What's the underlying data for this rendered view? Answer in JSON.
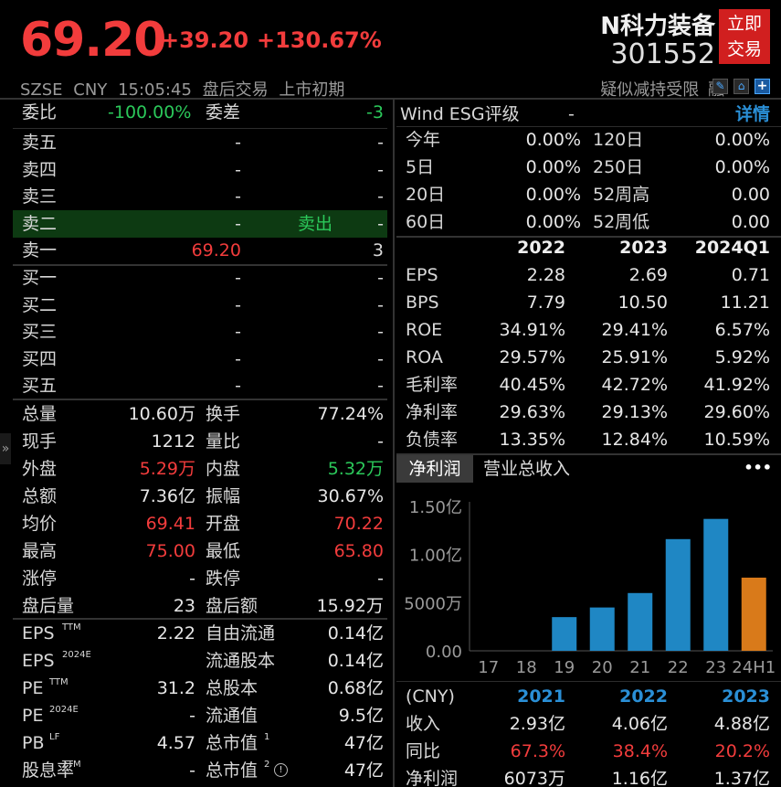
{
  "header": {
    "price": "69.20",
    "change": "+39.20",
    "change_pct": "+130.67%",
    "name": "N科力装备",
    "code": "301552",
    "btn_line1": "立即",
    "btn_line2": "交易",
    "exchange": "SZSE",
    "currency": "CNY",
    "time": "15:05:45",
    "session": "盘后交易",
    "stage": "上市初期",
    "tag": "疑似减持受限",
    "margin": "融"
  },
  "order_book": {
    "ratio_label": "委比",
    "ratio_value": "-100.00%",
    "diff_label": "委差",
    "diff_value": "-3",
    "asks": [
      {
        "label": "卖五",
        "price": "-",
        "vol": "-"
      },
      {
        "label": "卖四",
        "price": "-",
        "vol": "-"
      },
      {
        "label": "卖三",
        "price": "-",
        "vol": "-"
      },
      {
        "label": "卖二",
        "price": "-",
        "vol": "-",
        "note": "卖出"
      },
      {
        "label": "卖一",
        "price": "69.20",
        "vol": "3"
      }
    ],
    "bids": [
      {
        "label": "买一",
        "price": "-",
        "vol": "-"
      },
      {
        "label": "买二",
        "price": "-",
        "vol": "-"
      },
      {
        "label": "买三",
        "price": "-",
        "vol": "-"
      },
      {
        "label": "买四",
        "price": "-",
        "vol": "-"
      },
      {
        "label": "买五",
        "price": "-",
        "vol": "-"
      }
    ]
  },
  "stats": [
    {
      "l1": "总量",
      "v1": "10.60万",
      "c1": "white",
      "l2": "换手",
      "v2": "77.24%",
      "c2": "white"
    },
    {
      "l1": "现手",
      "v1": "1212",
      "c1": "white",
      "l2": "量比",
      "v2": "-",
      "c2": "white"
    },
    {
      "l1": "外盘",
      "v1": "5.29万",
      "c1": "red",
      "l2": "内盘",
      "v2": "5.32万",
      "c2": "green"
    },
    {
      "l1": "总额",
      "v1": "7.36亿",
      "c1": "white",
      "l2": "振幅",
      "v2": "30.67%",
      "c2": "white"
    },
    {
      "l1": "均价",
      "v1": "69.41",
      "c1": "red",
      "l2": "开盘",
      "v2": "70.22",
      "c2": "red"
    },
    {
      "l1": "最高",
      "v1": "75.00",
      "c1": "red",
      "l2": "最低",
      "v2": "65.80",
      "c2": "red"
    },
    {
      "l1": "涨停",
      "v1": "-",
      "c1": "white",
      "l2": "跌停",
      "v2": "-",
      "c2": "white"
    },
    {
      "l1": "盘后量",
      "v1": "23",
      "c1": "white",
      "l2": "盘后额",
      "v2": "15.92万",
      "c2": "white"
    }
  ],
  "valuation": [
    {
      "l1": "EPS",
      "s1": "TTM",
      "v1": "2.22",
      "l2": "自由流通",
      "s2": "",
      "v2": "0.14亿"
    },
    {
      "l1": "EPS",
      "s1": "2024E",
      "v1": "",
      "l2": "流通股本",
      "s2": "",
      "v2": "0.14亿"
    },
    {
      "l1": "PE",
      "s1": "TTM",
      "v1": "31.2",
      "l2": "总股本",
      "s2": "",
      "v2": "0.68亿"
    },
    {
      "l1": "PE",
      "s1": "2024E",
      "v1": "-",
      "l2": "流通值",
      "s2": "",
      "v2": "9.5亿"
    },
    {
      "l1": "PB",
      "s1": "LF",
      "v1": "4.57",
      "l2": "总市值",
      "s2": "1",
      "v2": "47亿"
    },
    {
      "l1": "股息率",
      "s1": "TTM",
      "v1": "-",
      "l2": "总市值",
      "s2": "2",
      "v2": "47亿"
    }
  ],
  "esg": {
    "label": "Wind ESG评级",
    "value": "-",
    "detail": "详情"
  },
  "returns": [
    {
      "l1": "今年",
      "v1": "0.00%",
      "l2": "120日",
      "v2": "0.00%"
    },
    {
      "l1": "5日",
      "v1": "0.00%",
      "l2": "250日",
      "v2": "0.00%"
    },
    {
      "l1": "20日",
      "v1": "0.00%",
      "l2": "52周高",
      "v2": "0.00"
    },
    {
      "l1": "60日",
      "v1": "0.00%",
      "l2": "52周低",
      "v2": "0.00"
    }
  ],
  "fin": {
    "years": [
      "2022",
      "2023",
      "2024Q1"
    ],
    "rows": [
      {
        "label": "EPS",
        "v": [
          "2.28",
          "2.69",
          "0.71"
        ]
      },
      {
        "label": "BPS",
        "v": [
          "7.79",
          "10.50",
          "11.21"
        ]
      },
      {
        "label": "ROE",
        "v": [
          "34.91%",
          "29.41%",
          "6.57%"
        ]
      },
      {
        "label": "ROA",
        "v": [
          "29.57%",
          "25.91%",
          "5.92%"
        ]
      },
      {
        "label": "毛利率",
        "v": [
          "40.45%",
          "42.72%",
          "41.92%"
        ]
      },
      {
        "label": "净利率",
        "v": [
          "29.63%",
          "29.13%",
          "29.60%"
        ]
      },
      {
        "label": "负债率",
        "v": [
          "13.35%",
          "12.84%",
          "10.59%"
        ]
      }
    ]
  },
  "tabs": {
    "active": "净利润",
    "other": "营业总收入",
    "more": "•••"
  },
  "chart_data": {
    "type": "bar",
    "categories": [
      "17",
      "18",
      "19",
      "20",
      "21",
      "22",
      "23",
      "24H1"
    ],
    "values": [
      0,
      0,
      0.35,
      0.45,
      0.6,
      1.16,
      1.37,
      0.76
    ],
    "unit": "亿",
    "ylim": [
      0,
      1.5
    ],
    "yticks": [
      "0.00",
      "5000万",
      "1.00亿",
      "1.50亿"
    ],
    "colors": [
      "#1f87c4",
      "#1f87c4",
      "#1f87c4",
      "#1f87c4",
      "#1f87c4",
      "#1f87c4",
      "#1f87c4",
      "#d97a1a"
    ]
  },
  "annual": {
    "cur": "(CNY)",
    "years": [
      "2021",
      "2022",
      "2023"
    ],
    "rows": [
      {
        "label": "收入",
        "v": [
          "2.93亿",
          "4.06亿",
          "4.88亿"
        ],
        "cls": "white"
      },
      {
        "label": "同比",
        "v": [
          "67.3%",
          "38.4%",
          "20.2%"
        ],
        "cls": "red"
      },
      {
        "label": "净利润",
        "v": [
          "6073万",
          "1.16亿",
          "1.37亿"
        ],
        "cls": "white"
      }
    ]
  }
}
